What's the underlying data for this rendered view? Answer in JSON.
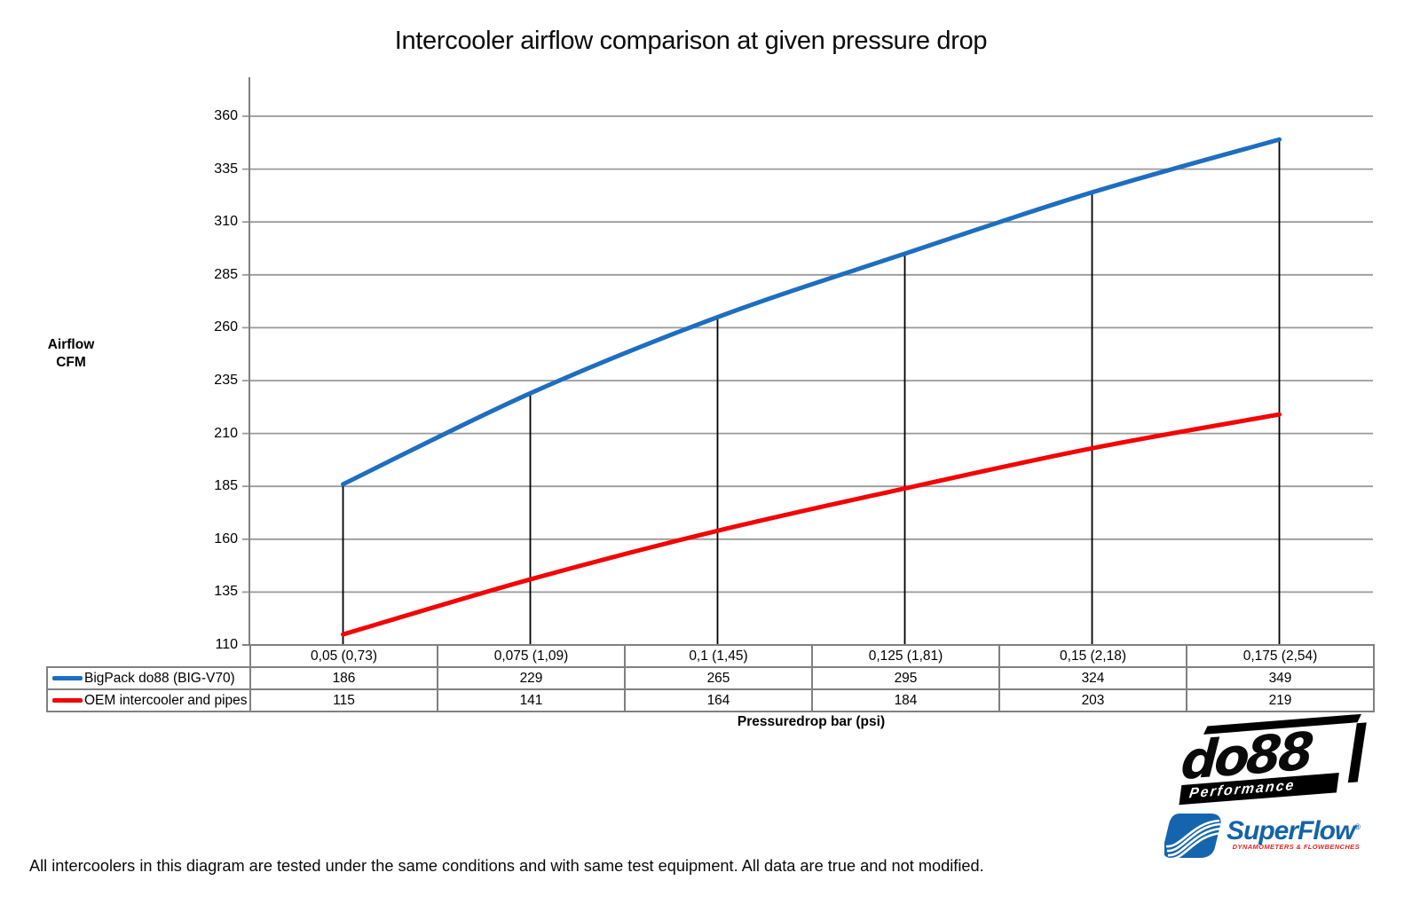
{
  "page": {
    "title": "Intercooler airflow comparison at given pressure drop",
    "footer_note": "All intercoolers in this diagram are tested under the same conditions and with same test equipment. All data are true and not modified."
  },
  "chart_data": {
    "type": "line",
    "title": "Intercooler airflow comparison at given pressure drop",
    "xlabel": "Pressuredrop bar (psi)",
    "ylabel": "Airflow CFM",
    "ylabel_lines": [
      "Airflow",
      "CFM"
    ],
    "ylim": [
      110,
      360
    ],
    "yticks": [
      360,
      335,
      310,
      285,
      260,
      235,
      210,
      185,
      160,
      135,
      110
    ],
    "grid": true,
    "drop_lines": true,
    "legend_position": "table-left",
    "categories": [
      "0,05 (0,73)",
      "0,075 (1,09)",
      "0,1 (1,45)",
      "0,125 (1,81)",
      "0,15 (2,18)",
      "0,175 (2,54)"
    ],
    "series": [
      {
        "name": "BigPack do88 (BIG-V70)",
        "color": "#1e6ec0",
        "values": [
          186,
          229,
          265,
          295,
          324,
          349
        ]
      },
      {
        "name": "OEM intercooler and pipes",
        "color": "#f20505",
        "values": [
          115,
          141,
          164,
          184,
          203,
          219
        ]
      }
    ],
    "colors": {
      "gridline": "#9a9a9a",
      "axis": "#808080",
      "drop_line": "#000000",
      "table_border": "#808080"
    }
  },
  "logos": {
    "do88": {
      "name": "do88",
      "tagline": "Performance"
    },
    "superflow": {
      "name": "SuperFlow",
      "registered": "®",
      "tagline": "DYNAMOMETERS & FLOWBENCHES"
    }
  }
}
